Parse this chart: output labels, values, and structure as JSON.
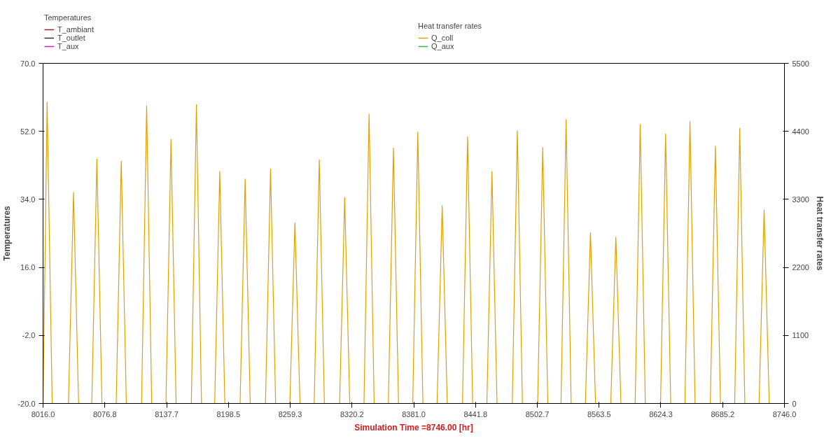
{
  "chart_data": {
    "type": "line",
    "xlabel": "Simulation Time =8746.00 [hr]",
    "ylabel": "Temperatures",
    "y2label": "Heat transfer rates",
    "xlim": [
      8016,
      8746
    ],
    "xticks": [
      {
        "value": 8016,
        "label": "8016.0"
      },
      {
        "value": 8076.8,
        "label": "8076.8"
      },
      {
        "value": 8137.7,
        "label": "8137.7"
      },
      {
        "value": 8198.5,
        "label": "8198.5"
      },
      {
        "value": 8259.3,
        "label": "8259.3"
      },
      {
        "value": 8320.2,
        "label": "8320.2"
      },
      {
        "value": 8381,
        "label": "8381.0"
      },
      {
        "value": 8441.8,
        "label": "8441.8"
      },
      {
        "value": 8502.7,
        "label": "8502.7"
      },
      {
        "value": 8563.5,
        "label": "8563.5"
      },
      {
        "value": 8624.3,
        "label": "8624.3"
      },
      {
        "value": 8685.2,
        "label": "8685.2"
      },
      {
        "value": 8746,
        "label": "8746.0"
      }
    ],
    "ylim": [
      -20,
      70
    ],
    "yticks": [
      {
        "value": -20,
        "label": "-20.0"
      },
      {
        "value": -2,
        "label": "-2.0"
      },
      {
        "value": 16,
        "label": "16.0"
      },
      {
        "value": 34,
        "label": "34.0"
      },
      {
        "value": 52,
        "label": "52.0"
      },
      {
        "value": 70,
        "label": "70.0"
      }
    ],
    "y2lim": [
      0,
      5500
    ],
    "y2ticks": [
      0,
      1100,
      2200,
      3300,
      4400,
      5500
    ],
    "grid": false,
    "legend": "top",
    "marker": "none",
    "line_style": "solid",
    "series": [
      {
        "name": "T_ambiant",
        "color": "#a0202a"
      },
      {
        "name": "T_outlet",
        "color": "#303030"
      },
      {
        "name": "T_aux",
        "color": "#d020c0"
      },
      {
        "name": "Q_coll",
        "color": "#e0a000",
        "axis": "y2",
        "x": [
          8016,
          8020,
          8025,
          8041,
          8046,
          8051,
          8064,
          8069,
          8074,
          8088,
          8093,
          8098,
          8113,
          8118,
          8123,
          8137,
          8142,
          8147,
          8162,
          8167,
          8172,
          8185,
          8190,
          8195,
          8210,
          8215,
          8220,
          8235,
          8240,
          8245,
          8259,
          8264,
          8269,
          8283,
          8288,
          8293,
          8308,
          8313,
          8318,
          8332,
          8337,
          8342,
          8356,
          8361,
          8366,
          8380,
          8385,
          8390,
          8404,
          8409,
          8414,
          8429,
          8434,
          8439,
          8453,
          8458,
          8463,
          8478,
          8483,
          8488,
          8503,
          8508,
          8513,
          8526,
          8531,
          8536,
          8550,
          8555,
          8560,
          8575,
          8580,
          8585,
          8599,
          8604,
          8609,
          8624,
          8629,
          8634,
          8648,
          8653,
          8658,
          8673,
          8678,
          8683,
          8697,
          8702,
          8707,
          8721,
          8726,
          8731
        ],
        "values": [
          0,
          4870,
          0,
          0,
          3410,
          0,
          0,
          3950,
          0,
          0,
          3920,
          0,
          0,
          4810,
          0,
          0,
          4270,
          0,
          0,
          4830,
          0,
          0,
          3750,
          0,
          0,
          3630,
          0,
          0,
          3790,
          0,
          0,
          2920,
          0,
          0,
          3940,
          0,
          0,
          3330,
          0,
          0,
          4680,
          0,
          0,
          4130,
          0,
          0,
          4390,
          0,
          0,
          3200,
          0,
          0,
          4310,
          0,
          0,
          3750,
          0,
          0,
          4410,
          0,
          0,
          4140,
          0,
          0,
          4590,
          0,
          0,
          2760,
          0,
          0,
          2690,
          0,
          0,
          4510,
          0,
          0,
          4360,
          0,
          0,
          4560,
          0,
          0,
          4160,
          0,
          0,
          4450,
          0,
          0,
          3130,
          0
        ]
      },
      {
        "name": "Q_aux",
        "color": "#40b040",
        "axis": "y2"
      }
    ]
  }
}
